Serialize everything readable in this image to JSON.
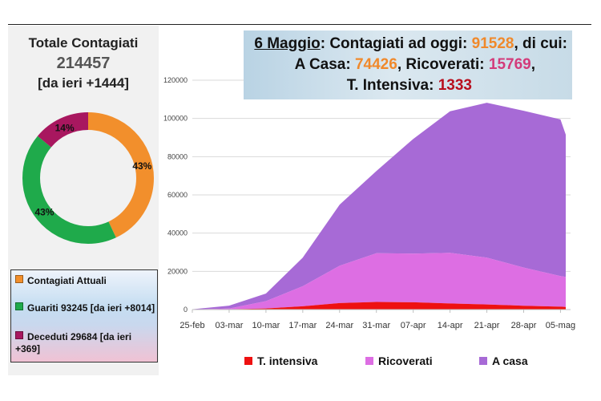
{
  "summary": {
    "title": "Totale Contagiati",
    "total": "214457",
    "delta": "[da ieri +1444]"
  },
  "donut": {
    "slices": [
      {
        "name": "Contagiati Attuali",
        "percent": 43,
        "label": "43%",
        "color": "#f28f2c"
      },
      {
        "name": "Guariti",
        "percent": 43,
        "label": "43%",
        "color": "#1faa4b"
      },
      {
        "name": "Deceduti",
        "percent": 14,
        "label": "14%",
        "color": "#a8175f"
      }
    ]
  },
  "legend_left": {
    "items": [
      {
        "label": "Contagiati Attuali",
        "color": "#f28f2c"
      },
      {
        "label": "Guariti 93245 [da ieri +8014]",
        "color": "#1faa4b"
      },
      {
        "label": "Deceduti 29684 [da ieri +369]",
        "color": "#a8175f"
      }
    ]
  },
  "banner": {
    "date": "6 Maggio",
    "t1": ": Contagiati ad oggi: ",
    "total": "91528",
    "t2": ", di cui:",
    "t3": "A Casa: ",
    "casa": "74426",
    "t4": ", Ricoverati: ",
    "ricoverati": "15769",
    "t5": ",",
    "t6": "T. Intensiva: ",
    "intensiva": "1333"
  },
  "chart_data": {
    "type": "area",
    "stacked": true,
    "title": "",
    "xlabel": "",
    "ylabel": "",
    "ylim": [
      0,
      120000
    ],
    "yticks": [
      0,
      20000,
      40000,
      60000,
      80000,
      100000,
      120000
    ],
    "ytick_labels": [
      "0",
      "20000",
      "40000",
      "60000",
      "80000",
      "100000",
      "120000"
    ],
    "grid": true,
    "x_start": "25-feb",
    "x_end": "05-mag",
    "x_tick_labels": [
      "25-feb",
      "03-mar",
      "10-mar",
      "17-mar",
      "24-mar",
      "31-mar",
      "07-apr",
      "14-apr",
      "21-apr",
      "28-apr",
      "05-mag"
    ],
    "x_day_index": [
      0,
      7,
      14,
      21,
      28,
      35,
      42,
      49,
      56,
      63,
      70,
      71
    ],
    "series": [
      {
        "name": "T. intensiva",
        "color": "#ee1111",
        "values": [
          0,
          150,
          600,
          1700,
          3400,
          4000,
          3800,
          3200,
          2700,
          2000,
          1500,
          1333
        ]
      },
      {
        "name": "Ricoverati",
        "color": "#dd6ee3",
        "values": [
          50,
          400,
          3800,
          10500,
          19500,
          25500,
          25500,
          26500,
          24500,
          20000,
          16000,
          15769
        ]
      },
      {
        "name": "A casa",
        "color": "#a76ad6",
        "values": [
          100,
          1500,
          4000,
          15000,
          32000,
          43000,
          60000,
          74000,
          81000,
          82000,
          82000,
          74426
        ]
      }
    ],
    "legend": [
      "T. intensiva",
      "Ricoverati",
      "A casa"
    ]
  }
}
